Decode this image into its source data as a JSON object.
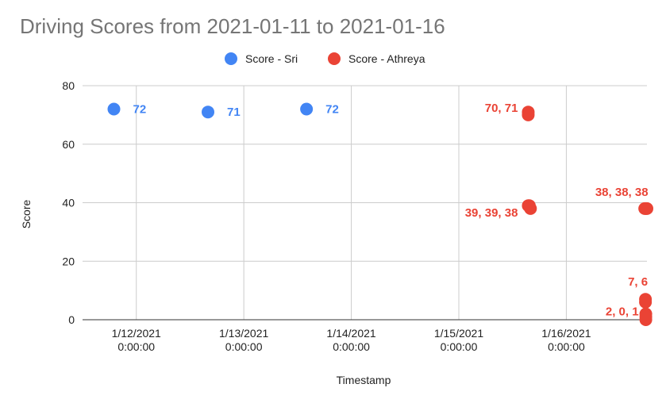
{
  "chart_data": {
    "type": "scatter",
    "title": "Driving Scores from 2021-01-11 to 2021-01-16",
    "xlabel": "Timestamp",
    "ylabel": "Score",
    "ylim": [
      0,
      80
    ],
    "yticks": [
      "0",
      "20",
      "40",
      "60",
      "80"
    ],
    "xlim": [
      "2021-01-11 12:00",
      "2021-01-16 18:00"
    ],
    "xticks": [
      {
        "x": "2021-01-12 00:00",
        "line1": "1/12/2021",
        "line2": "0:00:00"
      },
      {
        "x": "2021-01-13 00:00",
        "line1": "1/13/2021",
        "line2": "0:00:00"
      },
      {
        "x": "2021-01-14 00:00",
        "line1": "1/14/2021",
        "line2": "0:00:00"
      },
      {
        "x": "2021-01-15 00:00",
        "line1": "1/15/2021",
        "line2": "0:00:00"
      },
      {
        "x": "2021-01-16 00:00",
        "line1": "1/16/2021",
        "line2": "0:00:00"
      }
    ],
    "grid": true,
    "legend_position": "top",
    "series": [
      {
        "name": "Score - Sri",
        "color": "#4285f4",
        "points": [
          {
            "x": "2021-01-11 19:00",
            "y": 72
          },
          {
            "x": "2021-01-12 16:00",
            "y": 71
          },
          {
            "x": "2021-01-13 14:00",
            "y": 72
          }
        ],
        "labels": [
          {
            "text": "72",
            "x": "2021-01-11 19:00",
            "y": 72
          },
          {
            "text": "71",
            "x": "2021-01-12 16:00",
            "y": 71
          },
          {
            "text": "72",
            "x": "2021-01-13 14:00",
            "y": 72
          }
        ]
      },
      {
        "name": "Score - Athreya",
        "color": "#ea4335",
        "points": [
          {
            "x": "2021-01-15 15:30",
            "y": 70
          },
          {
            "x": "2021-01-15 15:30",
            "y": 71
          },
          {
            "x": "2021-01-15 15:30",
            "y": 39
          },
          {
            "x": "2021-01-15 15:45",
            "y": 39
          },
          {
            "x": "2021-01-15 16:00",
            "y": 38
          },
          {
            "x": "2021-01-16 17:30",
            "y": 38
          },
          {
            "x": "2021-01-16 17:45",
            "y": 38
          },
          {
            "x": "2021-01-16 18:00",
            "y": 38
          },
          {
            "x": "2021-01-16 17:40",
            "y": 7
          },
          {
            "x": "2021-01-16 17:40",
            "y": 6
          },
          {
            "x": "2021-01-16 17:45",
            "y": 2
          },
          {
            "x": "2021-01-16 17:45",
            "y": 0
          },
          {
            "x": "2021-01-16 17:45",
            "y": 1
          }
        ],
        "labels": [
          {
            "text": "70, 71",
            "x": "2021-01-15 15:30",
            "y": 71
          },
          {
            "text": "39, 39, 38",
            "x": "2021-01-15 15:30",
            "y": 38
          },
          {
            "text": "38, 38, 38",
            "x": "2021-01-16 17:45",
            "y": 38
          },
          {
            "text": "7, 6",
            "x": "2021-01-16 17:40",
            "y": 7
          },
          {
            "text": "2, 0, 1",
            "x": "2021-01-16 17:45",
            "y": 1
          }
        ]
      }
    ]
  }
}
